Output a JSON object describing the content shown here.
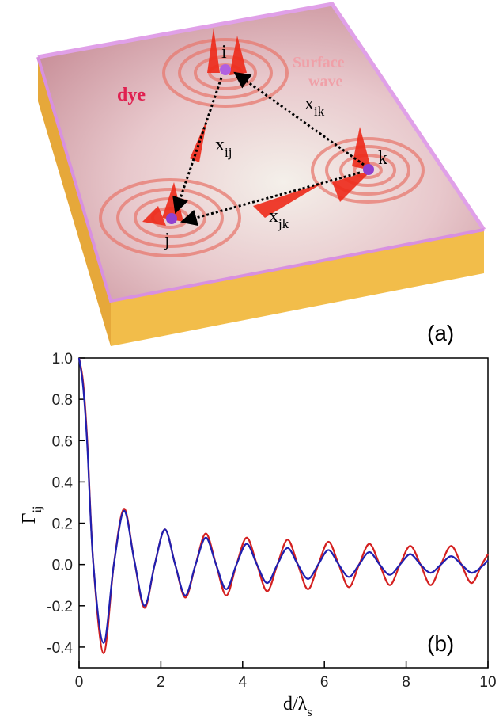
{
  "illustration": {
    "dye_label": "dye",
    "surface_wave_label": [
      "Surface",
      "wave"
    ],
    "nodes": [
      "i",
      "j",
      "k"
    ],
    "distances": [
      {
        "text": "x",
        "subscript": "ij"
      },
      {
        "text": "x",
        "subscript": "ik"
      },
      {
        "text": "x",
        "subscript": "jk"
      }
    ],
    "panel_label": "(a)"
  },
  "chart_data": {
    "type": "line",
    "panel_label": "(b)",
    "xlabel": {
      "text": "d/λ",
      "subscript": "s"
    },
    "ylabel": {
      "text": "Γ",
      "subscript": "ij"
    },
    "xlim": [
      0,
      10
    ],
    "ylim": [
      -0.5,
      1.0
    ],
    "xticks": [
      0,
      2,
      4,
      6,
      8,
      10
    ],
    "yticks": [
      -0.4,
      -0.2,
      {
        "value": 0,
        "label": "0.0"
      },
      0.2,
      0.4,
      0.6,
      0.8,
      {
        "value": 1,
        "label": "1.0"
      }
    ],
    "x": [
      0,
      0.1,
      0.2,
      0.35,
      0.6,
      0.85,
      1.1,
      1.35,
      1.6,
      1.85,
      2.1,
      2.35,
      2.6,
      2.85,
      3.1,
      3.35,
      3.6,
      3.85,
      4.1,
      4.35,
      4.6,
      4.85,
      5.1,
      5.35,
      5.6,
      5.85,
      6.1,
      6.35,
      6.6,
      6.85,
      7.1,
      7.35,
      7.6,
      7.85,
      8.1,
      8.35,
      8.6,
      8.85,
      9.1,
      9.35,
      9.6,
      9.85,
      10
    ],
    "series": [
      {
        "color": "#d42020",
        "values": [
          1.0,
          0.88,
          0.6,
          0.0,
          -0.43,
          0.0,
          0.27,
          0.02,
          -0.21,
          0.0,
          0.17,
          0.0,
          -0.16,
          0.0,
          0.15,
          0.0,
          -0.15,
          0.0,
          0.13,
          0.0,
          -0.13,
          0.0,
          0.12,
          0.0,
          -0.12,
          0.0,
          0.11,
          0.0,
          -0.11,
          0.0,
          0.1,
          0.0,
          -0.1,
          0.0,
          0.09,
          0.0,
          -0.1,
          0.0,
          0.09,
          0.0,
          -0.09,
          0.0,
          0.05
        ]
      },
      {
        "color": "#2020b0",
        "values": [
          1.0,
          0.86,
          0.58,
          0.0,
          -0.38,
          0.0,
          0.26,
          0.02,
          -0.2,
          0.0,
          0.17,
          0.0,
          -0.15,
          0.0,
          0.13,
          0.0,
          -0.12,
          0.0,
          0.1,
          0.0,
          -0.09,
          0.0,
          0.08,
          0.0,
          -0.07,
          0.0,
          0.07,
          0.0,
          -0.06,
          0.0,
          0.06,
          0.0,
          -0.05,
          0.0,
          0.05,
          0.0,
          -0.04,
          0.0,
          0.04,
          0.0,
          -0.04,
          -0.01,
          0.02
        ]
      }
    ]
  }
}
